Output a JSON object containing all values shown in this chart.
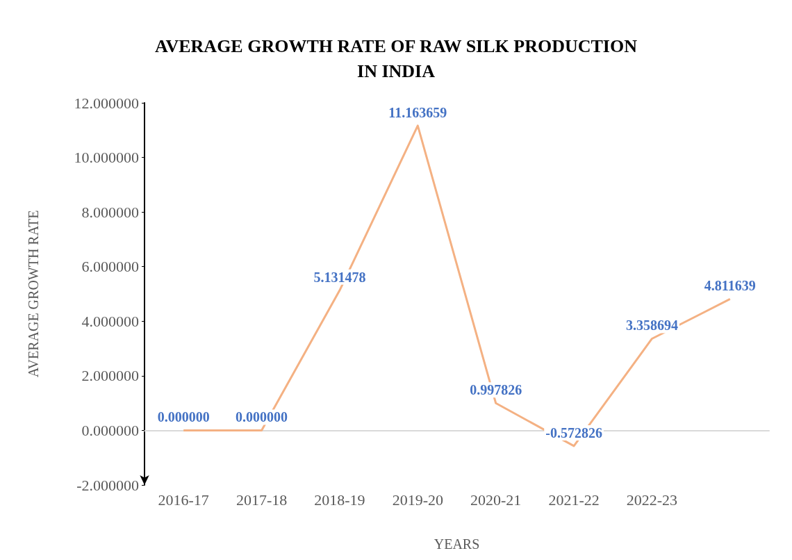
{
  "chart_data": {
    "type": "line",
    "title": "AVERAGE GROWTH RATE OF RAW SILK PRODUCTION\nIN INDIA",
    "xlabel": "YEARS",
    "ylabel": "AVERAGE GROWTH RATE",
    "categories": [
      "2016-17",
      "2017-18",
      "2018-19",
      "2019-20",
      "2020-21",
      "2021-22",
      "2022-23",
      null
    ],
    "series": [
      {
        "color": "#f4b183",
        "values": [
          0,
          0,
          5.131478,
          11.163659,
          0.997826,
          -0.572826,
          3.358694,
          4.811639
        ],
        "value_labels": [
          "0.000000",
          "0.000000",
          "5.131478",
          "11.163659",
          "0.997826",
          "-0.572826",
          "3.358694",
          "4.811639"
        ]
      }
    ],
    "ylim": [
      -2,
      12
    ],
    "yticks": [
      {
        "value": -2,
        "label": "-2.000000"
      },
      {
        "value": 0,
        "label": "0.000000"
      },
      {
        "value": 2,
        "label": "2.000000"
      },
      {
        "value": 4,
        "label": "4.000000"
      },
      {
        "value": 6,
        "label": "6.000000"
      },
      {
        "value": 8,
        "label": "8.000000"
      },
      {
        "value": 10,
        "label": "10.000000"
      },
      {
        "value": 12,
        "label": "12.000000"
      }
    ]
  }
}
